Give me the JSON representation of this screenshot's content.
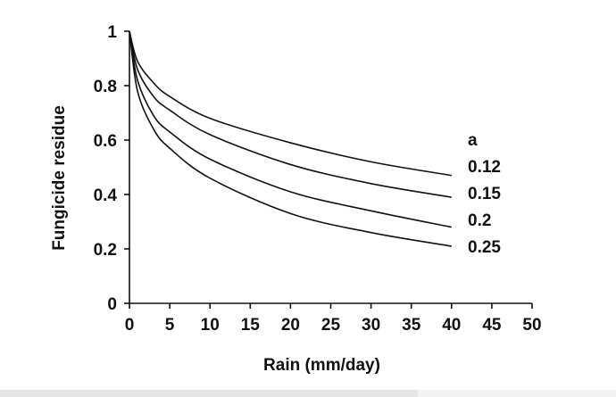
{
  "chart_data": {
    "type": "line",
    "title": "",
    "xlabel": "Rain (mm/day)",
    "ylabel": "Fungicide residue",
    "xlim": [
      0,
      50
    ],
    "ylim": [
      0,
      1
    ],
    "x_ticks": [
      "0",
      "5",
      "10",
      "15",
      "20",
      "25",
      "30",
      "35",
      "40",
      "45",
      "50"
    ],
    "y_ticks": [
      "0",
      "0.2",
      "0.4",
      "0.6",
      "0.8",
      "1"
    ],
    "grid": false,
    "legend_title": "a",
    "x": [
      0,
      1,
      3,
      5,
      10,
      20,
      30,
      40
    ],
    "series": [
      {
        "name": "0.12",
        "values": [
          1.0,
          0.89,
          0.81,
          0.76,
          0.68,
          0.59,
          0.52,
          0.47
        ]
      },
      {
        "name": "0.15",
        "values": [
          1.0,
          0.86,
          0.76,
          0.71,
          0.62,
          0.51,
          0.44,
          0.39
        ]
      },
      {
        "name": "0.2",
        "values": [
          1.0,
          0.82,
          0.69,
          0.63,
          0.53,
          0.41,
          0.34,
          0.28
        ]
      },
      {
        "name": "0.25",
        "values": [
          1.0,
          0.78,
          0.64,
          0.57,
          0.46,
          0.33,
          0.26,
          0.21
        ]
      }
    ]
  }
}
